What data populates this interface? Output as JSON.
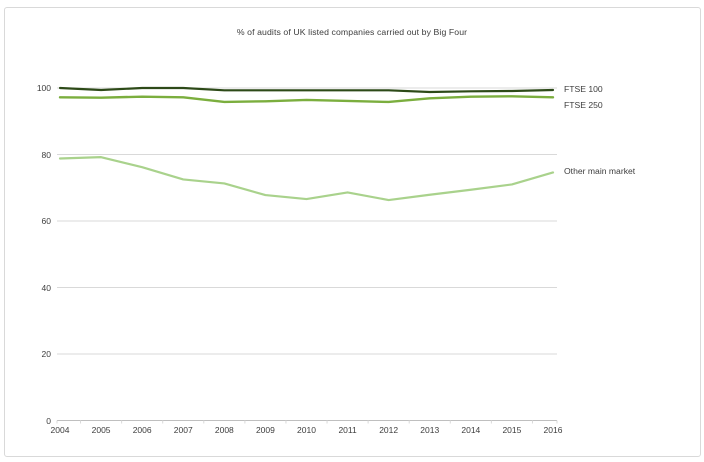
{
  "page": {
    "background": "#ffffff",
    "frame_border_color": "#d9d9d9"
  },
  "chart_data": {
    "type": "line",
    "title": "% of audits of UK listed companies carried out by Big Four",
    "x": [
      2004,
      2005,
      2006,
      2007,
      2008,
      2009,
      2010,
      2011,
      2012,
      2013,
      2014,
      2015,
      2016
    ],
    "series": [
      {
        "name": "FTSE 100",
        "color": "#2d4a18",
        "width": 2.2,
        "values": [
          100,
          99.4,
          100,
          100,
          99.3,
          99.3,
          99.3,
          99.3,
          99.3,
          98.8,
          99.0,
          99.1,
          99.4
        ]
      },
      {
        "name": "FTSE 250",
        "color": "#7bae3e",
        "width": 2.4,
        "values": [
          97.2,
          97.1,
          97.4,
          97.2,
          95.8,
          96.0,
          96.4,
          96.1,
          95.8,
          96.9,
          97.4,
          97.5,
          97.2
        ]
      },
      {
        "name": "Other main market",
        "color": "#a9d28c",
        "width": 2.2,
        "values": [
          78.8,
          79.2,
          76.2,
          72.5,
          71.3,
          67.8,
          66.6,
          68.6,
          66.3,
          67.9,
          69.4,
          71.0,
          74.6
        ]
      }
    ],
    "xlabel": "",
    "ylabel": "",
    "ylim": [
      0,
      100
    ],
    "y_ticks": [
      0,
      20,
      40,
      60,
      80,
      100
    ],
    "grid": "horizontal",
    "gridline_color": "#d9d9d9",
    "axis_color": "#bfbfbf",
    "tick_color": "#d9d9d9",
    "label_color": "#3d3d3d",
    "legend_position": "right of line ends"
  }
}
